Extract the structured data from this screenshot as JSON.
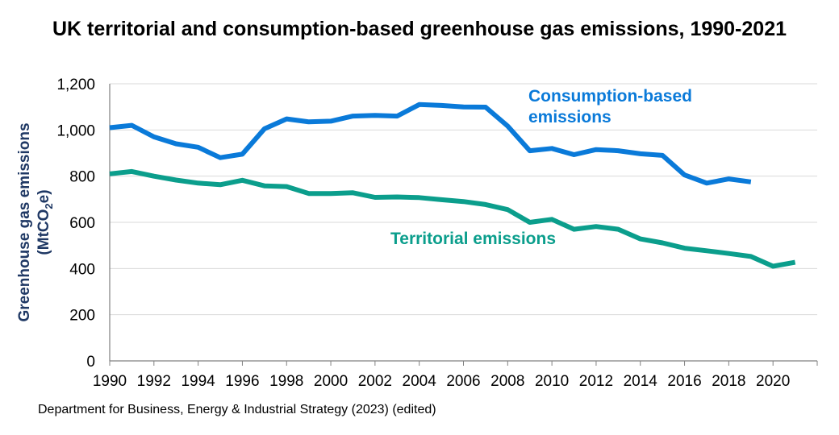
{
  "title": "UK territorial and consumption-based greenhouse gas emissions, 1990-2021",
  "source": "Department for Business, Energy & Industrial Strategy (2023) (edited)",
  "chart_data": {
    "type": "line",
    "title": "UK territorial and consumption-based greenhouse gas emissions, 1990-2021",
    "xlabel": "",
    "ylabel": "Greenhouse gas emissions",
    "ylabel_unit": "(MtCO2e)",
    "ylabel_unit_parts": {
      "pre": "(MtCO",
      "sub": "2",
      "post": "e)"
    },
    "xlim": [
      1990,
      2021
    ],
    "ylim": [
      0,
      1200
    ],
    "x_ticks": [
      1990,
      1992,
      1994,
      1996,
      1998,
      2000,
      2002,
      2004,
      2006,
      2008,
      2010,
      2012,
      2014,
      2016,
      2018,
      2020
    ],
    "y_ticks": [
      0,
      200,
      400,
      600,
      800,
      1000,
      1200
    ],
    "y_tick_labels": [
      "0",
      "200",
      "400",
      "600",
      "800",
      "1,000",
      "1,200"
    ],
    "grid": true,
    "legend": "direct labels",
    "series": [
      {
        "name": "Consumption-based emissions",
        "label_lines": [
          "Consumption-based",
          "emissions"
        ],
        "color": "#0a7ad9",
        "x": [
          1990,
          1991,
          1992,
          1993,
          1994,
          1995,
          1996,
          1997,
          1998,
          1999,
          2000,
          2001,
          2002,
          2003,
          2004,
          2005,
          2006,
          2007,
          2008,
          2009,
          2010,
          2011,
          2012,
          2013,
          2014,
          2015,
          2016,
          2017,
          2018,
          2019
        ],
        "values": [
          1010,
          1020,
          970,
          940,
          925,
          880,
          895,
          1005,
          1048,
          1035,
          1038,
          1060,
          1063,
          1060,
          1110,
          1106,
          1100,
          1099,
          1017,
          910,
          920,
          893,
          915,
          910,
          897,
          890,
          805,
          770,
          788,
          775
        ]
      },
      {
        "name": "Territorial emissions",
        "label_lines": [
          "Territorial emissions"
        ],
        "color": "#0b9e8c",
        "x": [
          1990,
          1991,
          1992,
          1993,
          1994,
          1995,
          1996,
          1997,
          1998,
          1999,
          2000,
          2001,
          2002,
          2003,
          2004,
          2005,
          2006,
          2007,
          2008,
          2009,
          2010,
          2011,
          2012,
          2013,
          2014,
          2015,
          2016,
          2017,
          2018,
          2019,
          2020,
          2021
        ],
        "values": [
          810,
          820,
          800,
          783,
          770,
          763,
          782,
          758,
          755,
          725,
          725,
          728,
          708,
          710,
          707,
          698,
          690,
          677,
          655,
          600,
          613,
          570,
          582,
          570,
          528,
          511,
          488,
          477,
          465,
          452,
          410,
          427
        ]
      }
    ]
  }
}
